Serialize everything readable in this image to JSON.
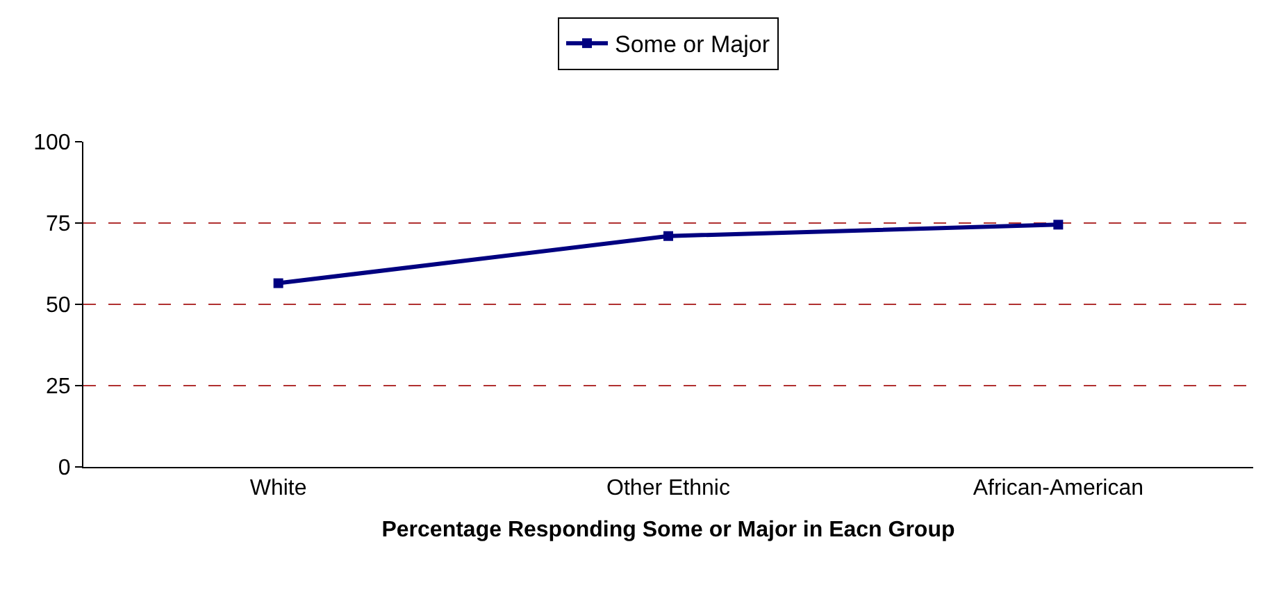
{
  "chart_data": {
    "type": "line",
    "xlabel": "Percentage Responding Some or Major in Eacn Group",
    "categories": [
      "White",
      "Other Ethnic",
      "African-American"
    ],
    "series": [
      {
        "name": "Some or Major",
        "color": "#000080",
        "values": [
          56.5,
          71,
          74.5
        ]
      }
    ],
    "ylim": [
      0,
      100
    ],
    "yticks": [
      0,
      25,
      50,
      75,
      100
    ],
    "grid": "y",
    "legend": "top",
    "marker": "square",
    "line_style": "solid"
  }
}
